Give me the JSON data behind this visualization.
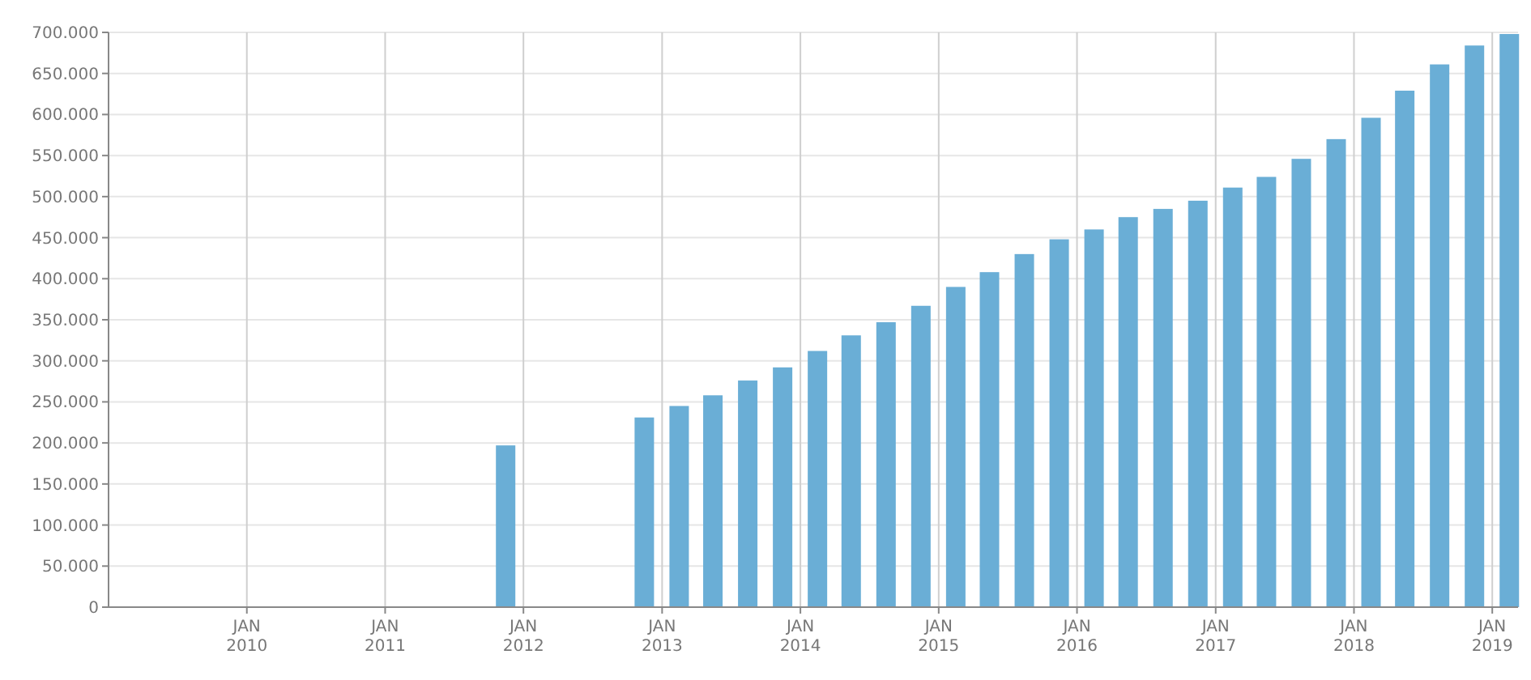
{
  "chart_data": {
    "type": "bar",
    "x": [
      "2011-11-15",
      "2012-11-15",
      "2013-02-15",
      "2013-05-15",
      "2013-08-15",
      "2013-11-15",
      "2014-02-15",
      "2014-05-15",
      "2014-08-15",
      "2014-11-15",
      "2015-02-15",
      "2015-05-15",
      "2015-08-15",
      "2015-11-15",
      "2016-02-15",
      "2016-05-15",
      "2016-08-15",
      "2016-11-15",
      "2017-02-15",
      "2017-05-15",
      "2017-08-15",
      "2017-11-15",
      "2018-02-15",
      "2018-05-15",
      "2018-08-15",
      "2018-11-15",
      "2019-02-15"
    ],
    "values": [
      197000,
      231000,
      245000,
      258000,
      276000,
      292000,
      312000,
      331000,
      347000,
      367000,
      390000,
      408000,
      430000,
      448000,
      460000,
      475000,
      485000,
      495000,
      511000,
      524000,
      546000,
      570000,
      596000,
      629000,
      661000,
      684000,
      698000
    ],
    "color": "#6aaed6",
    "xlim": [
      "2009-01-01",
      "2019-03-10"
    ],
    "xticks": [
      {
        "value": "2010-01-01",
        "label": "JAN 2010"
      },
      {
        "value": "2011-01-01",
        "label": "JAN 2011"
      },
      {
        "value": "2012-01-01",
        "label": "JAN 2012"
      },
      {
        "value": "2013-01-01",
        "label": "JAN 2013"
      },
      {
        "value": "2014-01-01",
        "label": "JAN 2014"
      },
      {
        "value": "2015-01-01",
        "label": "JAN 2015"
      },
      {
        "value": "2016-01-01",
        "label": "JAN 2016"
      },
      {
        "value": "2017-01-01",
        "label": "JAN 2017"
      },
      {
        "value": "2018-01-01",
        "label": "JAN 2018"
      },
      {
        "value": "2019-01-01",
        "label": "JAN 2019"
      }
    ],
    "ylim": [
      0,
      700000
    ],
    "yticks": [
      0,
      {
        "value": 50000,
        "label": "50.000"
      },
      {
        "value": 100000,
        "label": "100.000"
      },
      {
        "value": 150000,
        "label": "150.000"
      },
      {
        "value": 200000,
        "label": "200.000"
      },
      {
        "value": 250000,
        "label": "250.000"
      },
      {
        "value": 300000,
        "label": "300.000"
      },
      {
        "value": 350000,
        "label": "350.000"
      },
      {
        "value": 400000,
        "label": "400.000"
      },
      {
        "value": 450000,
        "label": "450.000"
      },
      {
        "value": 500000,
        "label": "500.000"
      },
      {
        "value": 550000,
        "label": "550.000"
      },
      {
        "value": 600000,
        "label": "600.000"
      },
      {
        "value": 650000,
        "label": "650.000"
      },
      {
        "value": 700000,
        "label": "700.000"
      }
    ],
    "grid": true
  }
}
